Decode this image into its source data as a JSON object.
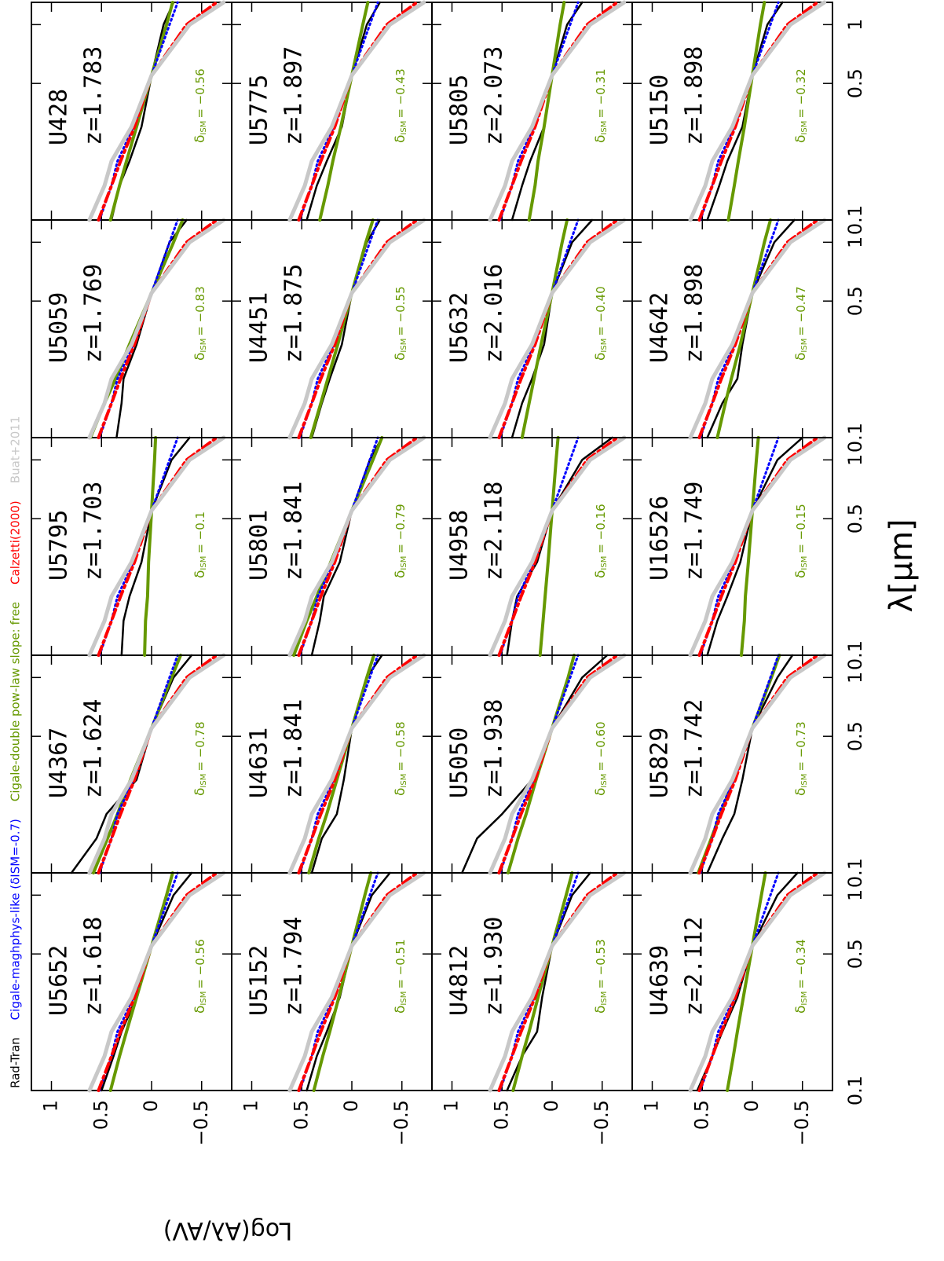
{
  "chart_data": {
    "type": "line",
    "xlabel": "λ[μm]",
    "ylabel": "Log(Aλ/AV)",
    "log_x": true,
    "x": [
      0.1,
      0.15,
      0.2,
      0.3,
      0.55,
      1.0,
      1.3
    ],
    "xlim": [
      0.1,
      1.3
    ],
    "xticks": [
      0.1,
      0.5,
      1
    ],
    "ylim": [
      -0.8,
      1.2
    ],
    "yticks": [
      {
        "value": -0.5,
        "label": "−0.5"
      },
      0,
      0.5,
      1
    ],
    "delta_symbol": "δ",
    "delta_subscript": "ISM",
    "series": [
      {
        "name": "Rad-Tran",
        "color": "#000000"
      },
      {
        "name": "Cigale-maghphys-like (δISM=-0.7)",
        "color": "#0000ff",
        "values": [
          0.52,
          0.4,
          0.34,
          0.18,
          0,
          -0.18,
          -0.26
        ]
      },
      {
        "name": "Cigale-double pow-law slope: free",
        "color": "#669900"
      },
      {
        "name": "Calzetti(2000)",
        "color": "#ff0000",
        "values": [
          0.53,
          0.4,
          0.31,
          0.17,
          0,
          -0.35,
          -0.65
        ]
      },
      {
        "name": "Buat+2011",
        "color": "#c8c8c8",
        "values": [
          0.62,
          0.47,
          0.4,
          0.2,
          0,
          -0.38,
          -0.72
        ]
      }
    ],
    "columns": 5,
    "panels": [
      {
        "name": "U5652",
        "z": "z=1.618",
        "delta": "= −0.56",
        "rad_tran": [
          0.5,
          0.38,
          0.3,
          0.15,
          0,
          -0.22,
          -0.4
        ],
        "pow_law": [
          0.41,
          0.32,
          0.25,
          0.15,
          0,
          -0.15,
          -0.21
        ]
      },
      {
        "name": "U4367",
        "z": "z=1.624",
        "delta": "= −0.78",
        "rad_tran": [
          0.8,
          0.55,
          0.45,
          0.15,
          0,
          -0.22,
          -0.4
        ],
        "pow_law": [
          0.58,
          0.44,
          0.34,
          0.21,
          0,
          -0.2,
          -0.29
        ]
      },
      {
        "name": "U5795",
        "z": "z=1.703",
        "delta": "= −0.1",
        "rad_tran": [
          0.3,
          0.28,
          0.22,
          0.1,
          0,
          -0.2,
          -0.38
        ],
        "pow_law": [
          0.07,
          0.06,
          0.04,
          0.03,
          0,
          -0.03,
          -0.04
        ]
      },
      {
        "name": "U5059",
        "z": "z=1.769",
        "delta": "= −0.83",
        "rad_tran": [
          0.35,
          0.3,
          0.28,
          0.15,
          0,
          -0.18,
          -0.35
        ],
        "pow_law": [
          0.61,
          0.47,
          0.36,
          0.22,
          0,
          -0.22,
          -0.31
        ]
      },
      {
        "name": "U428",
        "z": "z=1.783",
        "delta": "= −0.56",
        "rad_tran": [
          0.4,
          0.32,
          0.22,
          0.1,
          0,
          -0.12,
          -0.22
        ],
        "pow_law": [
          0.41,
          0.32,
          0.25,
          0.15,
          0,
          -0.15,
          -0.21
        ]
      },
      {
        "name": "U5152",
        "z": "z=1.794",
        "delta": "= −0.51",
        "rad_tran": [
          0.45,
          0.35,
          0.25,
          0.12,
          0,
          -0.2,
          -0.38
        ],
        "pow_law": [
          0.38,
          0.29,
          0.22,
          0.13,
          0,
          -0.13,
          -0.19
        ]
      },
      {
        "name": "U4631",
        "z": "z=1.841",
        "delta": "= −0.58",
        "rad_tran": [
          0.4,
          0.3,
          0.15,
          0.08,
          0,
          -0.15,
          -0.3
        ],
        "pow_law": [
          0.43,
          0.33,
          0.25,
          0.15,
          0,
          -0.15,
          -0.22
        ]
      },
      {
        "name": "U5801",
        "z": "z=1.841",
        "delta": "= −0.79",
        "rad_tran": [
          0.4,
          0.32,
          0.28,
          0.12,
          0,
          -0.18,
          -0.3
        ],
        "pow_law": [
          0.58,
          0.45,
          0.35,
          0.21,
          0,
          -0.21,
          -0.3
        ]
      },
      {
        "name": "U4451",
        "z": "z=1.875",
        "delta": "= −0.55",
        "rad_tran": [
          0.4,
          0.3,
          0.22,
          0.1,
          0,
          -0.15,
          -0.28
        ],
        "pow_law": [
          0.41,
          0.31,
          0.24,
          0.14,
          0,
          -0.14,
          -0.21
        ]
      },
      {
        "name": "U5775",
        "z": "z=1.897",
        "delta": "= −0.43",
        "rad_tran": [
          0.45,
          0.35,
          0.25,
          0.1,
          0,
          -0.15,
          -0.28
        ],
        "pow_law": [
          0.32,
          0.24,
          0.19,
          0.11,
          0,
          -0.11,
          -0.16
        ]
      },
      {
        "name": "U4812",
        "z": "z=1.930",
        "delta": "= −0.53",
        "rad_tran": [
          0.45,
          0.3,
          0.15,
          0.1,
          0,
          -0.2,
          -0.38
        ],
        "pow_law": [
          0.39,
          0.3,
          0.23,
          0.14,
          0,
          -0.14,
          -0.2
        ]
      },
      {
        "name": "U5050",
        "z": "z=1.938",
        "delta": "= −0.60",
        "rad_tran": [
          0.9,
          0.75,
          0.5,
          0.2,
          0,
          -0.3,
          -0.55
        ],
        "pow_law": [
          0.44,
          0.34,
          0.26,
          0.16,
          0,
          -0.16,
          -0.22
        ]
      },
      {
        "name": "U4958",
        "z": "z=2.118",
        "delta": "= −0.16",
        "rad_tran": [
          0.45,
          0.4,
          0.35,
          0.15,
          0,
          -0.3,
          -0.6
        ],
        "pow_law": [
          0.12,
          0.09,
          0.07,
          0.04,
          0,
          -0.04,
          -0.06
        ]
      },
      {
        "name": "U5632",
        "z": "z=2.016",
        "delta": "= −0.40",
        "rad_tran": [
          0.4,
          0.3,
          0.2,
          0.08,
          0,
          -0.2,
          -0.4
        ],
        "pow_law": [
          0.3,
          0.23,
          0.18,
          0.11,
          0,
          -0.1,
          -0.15
        ]
      },
      {
        "name": "U5805",
        "z": "z=2.073",
        "delta": "= −0.31",
        "rad_tran": [
          0.4,
          0.3,
          0.22,
          0.08,
          0,
          -0.15,
          -0.3
        ],
        "pow_law": [
          0.23,
          0.17,
          0.14,
          0.08,
          0,
          -0.08,
          -0.12
        ]
      },
      {
        "name": "U4639",
        "z": "z=2.112",
        "delta": "= −0.34",
        "rad_tran": [
          0.55,
          0.4,
          0.3,
          0.15,
          0,
          -0.25,
          -0.45
        ],
        "pow_law": [
          0.25,
          0.19,
          0.15,
          0.09,
          0,
          -0.09,
          -0.13
        ]
      },
      {
        "name": "U5829",
        "z": "z=1.742",
        "delta": "= −0.73",
        "rad_tran": [
          0.45,
          0.3,
          0.18,
          0.1,
          0,
          -0.25,
          -0.4
        ],
        "pow_law": [
          0.54,
          0.41,
          0.32,
          0.19,
          0,
          -0.19,
          -0.27
        ]
      },
      {
        "name": "U16526",
        "z": "z=1.749",
        "delta": "= −0.15",
        "rad_tran": [
          0.45,
          0.35,
          0.25,
          0.12,
          0,
          -0.25,
          -0.5
        ],
        "pow_law": [
          0.11,
          0.08,
          0.07,
          0.04,
          0,
          -0.04,
          -0.06
        ]
      },
      {
        "name": "U4642",
        "z": "z=1.898",
        "delta": "= −0.47",
        "rad_tran": [
          0.45,
          0.3,
          0.15,
          0.1,
          0,
          -0.22,
          -0.42
        ],
        "pow_law": [
          0.35,
          0.27,
          0.21,
          0.12,
          0,
          -0.12,
          -0.18
        ]
      },
      {
        "name": "U5150",
        "z": "z=1.898",
        "delta": "= −0.32",
        "rad_tran": [
          0.45,
          0.33,
          0.25,
          0.1,
          0,
          -0.15,
          -0.3
        ],
        "pow_law": [
          0.24,
          0.18,
          0.14,
          0.08,
          0,
          -0.08,
          -0.12
        ]
      }
    ]
  }
}
